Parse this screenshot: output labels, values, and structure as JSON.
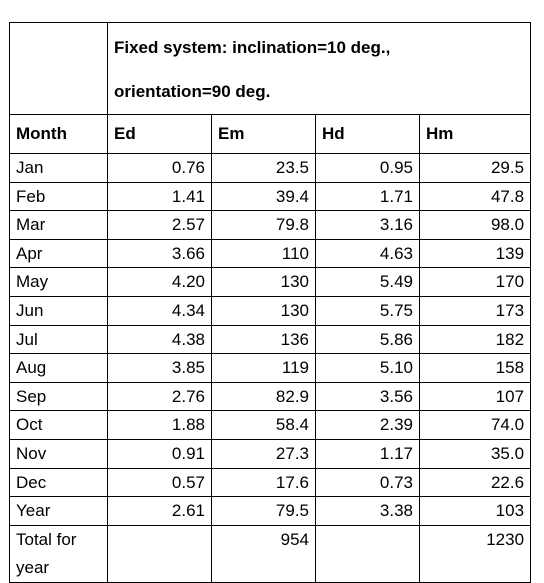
{
  "title": {
    "line1": "Fixed system: inclination=10 deg.,",
    "line2": "orientation=90 deg."
  },
  "columns": [
    "Month",
    "Ed",
    "Em",
    "Hd",
    "Hm"
  ],
  "rows": [
    {
      "month": "Jan",
      "ed": "0.76",
      "em": "23.5",
      "hd": "0.95",
      "hm": "29.5"
    },
    {
      "month": "Feb",
      "ed": "1.41",
      "em": "39.4",
      "hd": "1.71",
      "hm": "47.8"
    },
    {
      "month": "Mar",
      "ed": "2.57",
      "em": "79.8",
      "hd": "3.16",
      "hm": "98.0"
    },
    {
      "month": "Apr",
      "ed": "3.66",
      "em": "110",
      "hd": "4.63",
      "hm": "139"
    },
    {
      "month": "May",
      "ed": "4.20",
      "em": "130",
      "hd": "5.49",
      "hm": "170"
    },
    {
      "month": "Jun",
      "ed": "4.34",
      "em": "130",
      "hd": "5.75",
      "hm": "173"
    },
    {
      "month": "Jul",
      "ed": "4.38",
      "em": "136",
      "hd": "5.86",
      "hm": "182"
    },
    {
      "month": "Aug",
      "ed": "3.85",
      "em": "119",
      "hd": "5.10",
      "hm": "158"
    },
    {
      "month": "Sep",
      "ed": "2.76",
      "em": "82.9",
      "hd": "3.56",
      "hm": "107"
    },
    {
      "month": "Oct",
      "ed": "1.88",
      "em": "58.4",
      "hd": "2.39",
      "hm": "74.0"
    },
    {
      "month": "Nov",
      "ed": "0.91",
      "em": "27.3",
      "hd": "1.17",
      "hm": "35.0"
    },
    {
      "month": "Dec",
      "ed": "0.57",
      "em": "17.6",
      "hd": "0.73",
      "hm": "22.6"
    },
    {
      "month": "Year",
      "ed": "2.61",
      "em": "79.5",
      "hd": "3.38",
      "hm": "103"
    }
  ],
  "total": {
    "label_line1": "Total for",
    "label_line2": "year",
    "em": "954",
    "hm": "1230"
  }
}
